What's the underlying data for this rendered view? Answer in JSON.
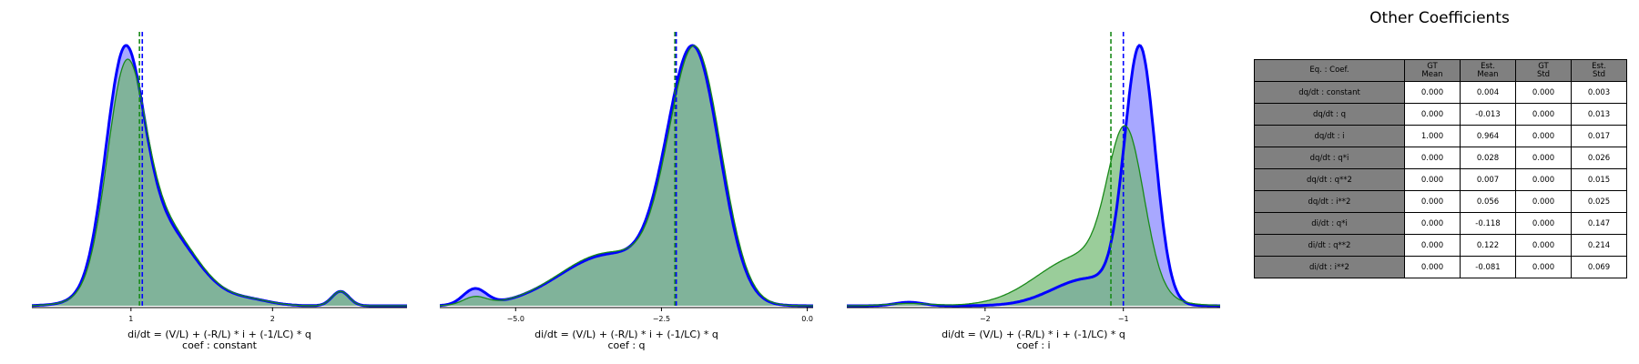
{
  "colors": {
    "gt": "#0000ff",
    "gt_fill": "#9999ff",
    "est": "#1a8a1a",
    "est_fill": "#6fb86f",
    "overlap": "#5a8f98"
  },
  "chart_data": [
    {
      "type": "area",
      "xlabel": "di/dt = (V/L) + (-R/L) * i + (-1/LC) * q",
      "coef_label": "coef : constant",
      "xlim": [
        0.3,
        2.95
      ],
      "xticks": [
        1,
        2
      ],
      "xtick_labels": [
        "1",
        "2"
      ],
      "vlines": {
        "gt": 1.08,
        "est": 1.06
      },
      "series": [
        {
          "role": "gt",
          "components": [
            [
              0.95,
              0.13,
              0.55
            ],
            [
              1.18,
              0.26,
              0.45
            ],
            [
              1.85,
              0.15,
              0.015
            ],
            [
              2.48,
              0.06,
              0.018
            ]
          ]
        },
        {
          "role": "est",
          "components": [
            [
              0.96,
              0.13,
              0.5
            ],
            [
              1.18,
              0.26,
              0.47
            ],
            [
              1.85,
              0.15,
              0.015
            ],
            [
              2.48,
              0.06,
              0.018
            ]
          ]
        }
      ]
    },
    {
      "type": "area",
      "xlabel": "di/dt = (V/L) + (-R/L) * i + (-1/LC) * q",
      "coef_label": "coef : q",
      "xlim": [
        -6.3,
        0.1
      ],
      "xticks": [
        -5.0,
        -2.5,
        0.0
      ],
      "xtick_labels": [
        "−5.0",
        "−2.5",
        "0.0"
      ],
      "vlines": {
        "gt": -2.27,
        "est": -2.27
      },
      "series": [
        {
          "role": "gt",
          "components": [
            [
              -1.95,
              0.45,
              0.7
            ],
            [
              -3.4,
              0.85,
              0.27
            ],
            [
              -5.7,
              0.2,
              0.02
            ]
          ]
        },
        {
          "role": "est",
          "components": [
            [
              -1.92,
              0.45,
              0.7
            ],
            [
              -3.4,
              0.85,
              0.28
            ],
            [
              -5.7,
              0.2,
              0.01
            ]
          ]
        }
      ]
    },
    {
      "type": "area",
      "xlabel": "di/dt = (V/L) + (-R/L) * i + (-1/LC) * q",
      "coef_label": "coef : i",
      "xlim": [
        -3.0,
        -0.3
      ],
      "xticks": [
        -2,
        -1
      ],
      "xtick_labels": [
        "−2",
        "−1"
      ],
      "vlines": {
        "gt": -1.0,
        "est": -1.09
      },
      "series": [
        {
          "role": "gt",
          "components": [
            [
              -0.88,
              0.11,
              0.78
            ],
            [
              -1.25,
              0.26,
              0.2
            ],
            [
              -2.55,
              0.1,
              0.01
            ]
          ]
        },
        {
          "role": "est",
          "components": [
            [
              -0.98,
              0.13,
              0.55
            ],
            [
              -1.3,
              0.32,
              0.45
            ],
            [
              -2.55,
              0.15,
              0.01
            ]
          ]
        }
      ]
    }
  ],
  "table": {
    "title": "Other Coefficients",
    "headers": [
      "Eq. : Coef.",
      "GT\nMean",
      "Est.\nMean",
      "GT\nStd",
      "Est.\nStd"
    ],
    "rows": [
      [
        "dq/dt  : constant",
        "0.000",
        "0.004",
        "0.000",
        "0.003"
      ],
      [
        "dq/dt  : q",
        "0.000",
        "-0.013",
        "0.000",
        "0.013"
      ],
      [
        "dq/dt  : i",
        "1.000",
        "0.964",
        "0.000",
        "0.017"
      ],
      [
        "dq/dt  : q*i",
        "0.000",
        "0.028",
        "0.000",
        "0.026"
      ],
      [
        "dq/dt  : q**2",
        "0.000",
        "0.007",
        "0.000",
        "0.015"
      ],
      [
        "dq/dt  : i**2",
        "0.000",
        "0.056",
        "0.000",
        "0.025"
      ],
      [
        "di/dt  : q*i",
        "0.000",
        "-0.118",
        "0.000",
        "0.147"
      ],
      [
        "di/dt  : q**2",
        "0.000",
        "0.122",
        "0.000",
        "0.214"
      ],
      [
        "di/dt  : i**2",
        "0.000",
        "-0.081",
        "0.000",
        "0.069"
      ]
    ]
  }
}
